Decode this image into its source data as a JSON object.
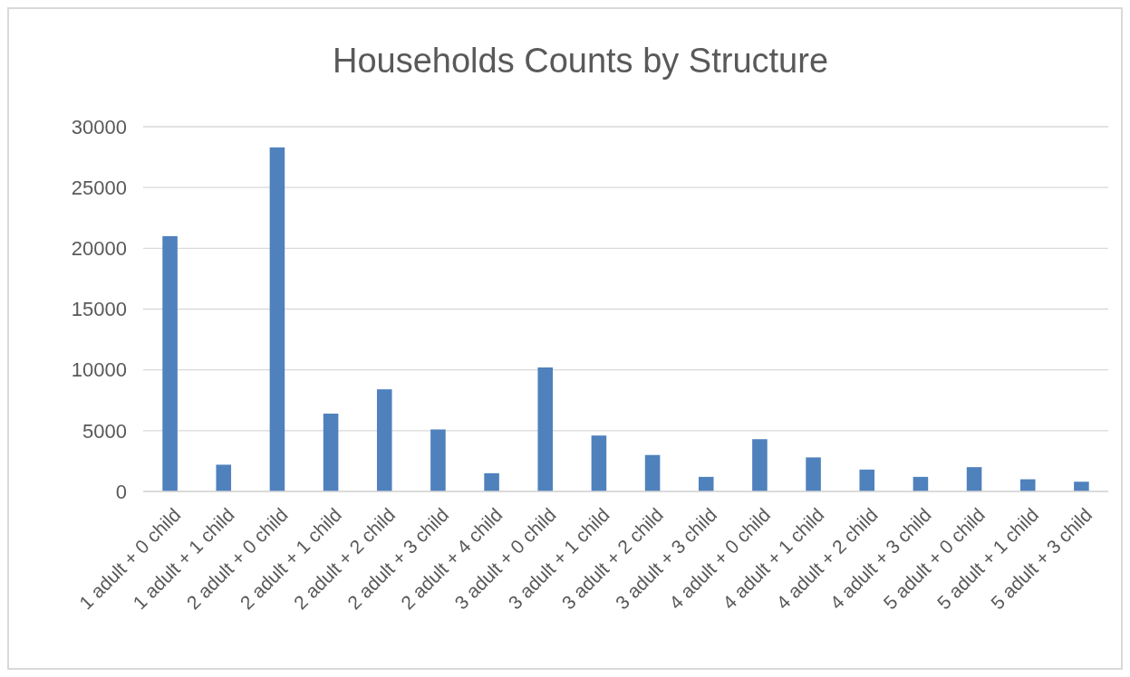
{
  "chart_data": {
    "type": "bar",
    "title": "Households Counts by Structure",
    "categories": [
      "1 adult + 0 child",
      "1 adult + 1 child",
      "2 adult + 0 child",
      "2 adult + 1 child",
      "2 adult + 2 child",
      "2 adult + 3 child",
      "2 adult + 4 child",
      "3 adult + 0 child",
      "3 adult + 1 child",
      "3 adult + 2 child",
      "3 adult + 3 child",
      "4 adult + 0 child",
      "4 adult + 1 child",
      "4 adult + 2 child",
      "4 adult + 3 child",
      "5 adult + 0 child",
      "5 adult + 1 child",
      "5 adult + 3 child"
    ],
    "values": [
      21000,
      2200,
      28300,
      6400,
      8400,
      5100,
      1500,
      10200,
      4600,
      3000,
      1200,
      4300,
      2800,
      1800,
      1200,
      2000,
      1000,
      800
    ],
    "color": "#4f81bd",
    "ylim": [
      0,
      30000
    ],
    "yticks": [
      0,
      5000,
      10000,
      15000,
      20000,
      25000,
      30000
    ],
    "grid": "y"
  }
}
